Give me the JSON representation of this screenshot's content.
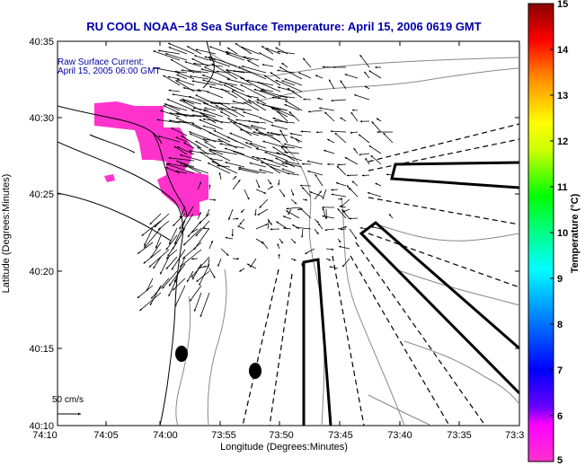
{
  "title": "RU COOL  NOAA−18  Sea Surface Temperature:  April 15, 2006 0619 GMT",
  "caption": {
    "line1": "Raw Surface Current:",
    "line2": "April 15, 2005 06:00 GMT"
  },
  "axes": {
    "xlabel": "Longitude (Degrees:Minutes)",
    "ylabel": "Latitude (Degrees:Minutes)",
    "xticks": [
      "74:10",
      "74:05",
      "74:00",
      "73:55",
      "73:50",
      "73:45",
      "73:40",
      "73:35",
      "73:3"
    ],
    "yticks": [
      "40:35",
      "40:30",
      "40:25",
      "40:20",
      "40:15",
      "40:10"
    ]
  },
  "scale_label": "50 cm/s",
  "colorbar": {
    "label": "Temperature (°C)",
    "ticks": [
      "15",
      "14",
      "13",
      "12",
      "11",
      "10",
      "9",
      "8",
      "7",
      "6",
      "5"
    ],
    "range": [
      5,
      15
    ],
    "colors": [
      "#ff00ff",
      "#0000ff",
      "#00ffff",
      "#00ff00",
      "#ffff00",
      "#ff7f00",
      "#ff0000",
      "#7f0000"
    ]
  },
  "map": {
    "coast_color": "#000000",
    "contour_color": "#888888",
    "sst_patch_color": "#ff33cc",
    "vector_color": "#000000"
  }
}
